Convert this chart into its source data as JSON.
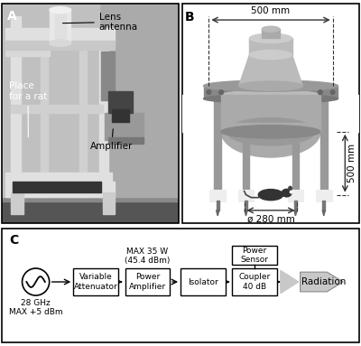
{
  "panel_A_label": "A",
  "panel_B_label": "B",
  "panel_C_label": "C",
  "panel_B_dim_top": "500 mm",
  "panel_B_dim_side": "500 mm",
  "panel_B_dim_bottom": "ø 280 mm",
  "block_diagram": {
    "source_label": "28 GHz\nMAX +5 dBm",
    "blocks": [
      "Variable\nAttenuator",
      "Power\nAmplifier",
      "Isolator",
      "Coupler\n40 dB"
    ],
    "above_pa_label": "MAX 35 W\n(45.4 dBm)",
    "top_box_label": "Power\nSensor",
    "radiation_label": "Radiation"
  },
  "bg_color": "#ffffff",
  "label_fontsize": 10,
  "small_fontsize": 7.5
}
